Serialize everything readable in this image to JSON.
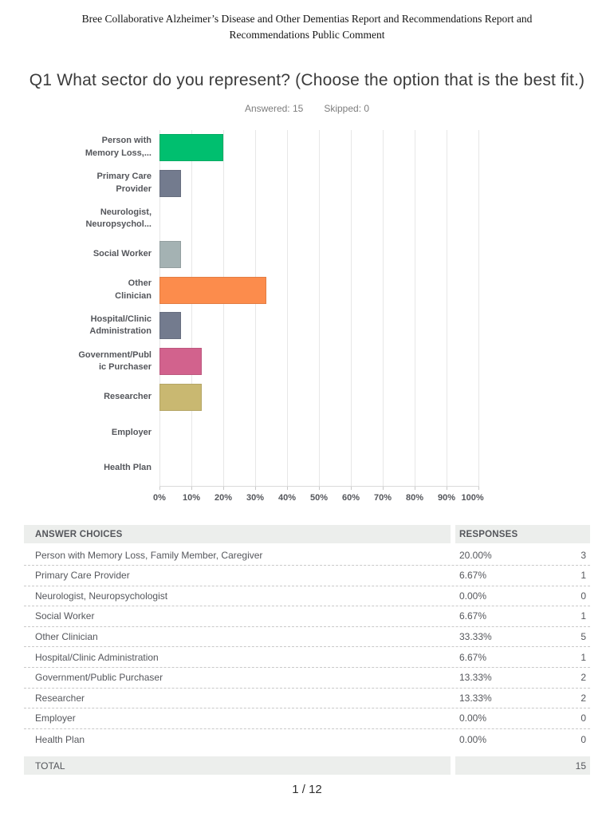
{
  "header": {
    "title": "Bree Collaborative Alzheimer’s Disease and Other Dementias Report and Recommendations Report and Recommendations Public Comment"
  },
  "question": {
    "title": "Q1 What sector do you represent? (Choose the option that is the best fit.)",
    "answered": "Answered: 15",
    "skipped": "Skipped: 0"
  },
  "chart_data": {
    "type": "bar",
    "orientation": "horizontal",
    "categories": [
      "Person with Memory Loss, Family Member, Caregiver",
      "Primary Care Provider",
      "Neurologist, Neuropsychologist",
      "Social Worker",
      "Other Clinician",
      "Hospital/Clinic Administration",
      "Government/Public Purchaser",
      "Researcher",
      "Employer",
      "Health Plan"
    ],
    "label_lines": [
      [
        "Person with",
        "Memory Loss,..."
      ],
      [
        "Primary Care",
        "Provider"
      ],
      [
        "Neurologist,",
        "Neuropsychol..."
      ],
      [
        "Social Worker"
      ],
      [
        "Other",
        "Clinician"
      ],
      [
        "Hospital/Clinic",
        "Administration"
      ],
      [
        "Government/Publ",
        "ic Purchaser"
      ],
      [
        "Researcher"
      ],
      [
        "Employer"
      ],
      [
        "Health Plan"
      ]
    ],
    "values": [
      20,
      6.67,
      0,
      6.67,
      33.33,
      6.67,
      13.33,
      13.33,
      0,
      0
    ],
    "counts": [
      3,
      1,
      0,
      1,
      5,
      1,
      2,
      2,
      0,
      0
    ],
    "colors": [
      "#00BF6F",
      "#737B8E",
      null,
      "#A4B2B3",
      "#FC8C4C",
      "#737B8E",
      "#D2628D",
      "#C9B871",
      null,
      null
    ],
    "xticks": [
      "0%",
      "10%",
      "20%",
      "30%",
      "40%",
      "50%",
      "60%",
      "70%",
      "80%",
      "90%",
      "100%"
    ],
    "xlim": [
      0,
      100
    ],
    "grid": true,
    "legend": "none",
    "xlabel": "",
    "ylabel": ""
  },
  "table": {
    "headers": [
      "ANSWER CHOICES",
      "RESPONSES"
    ],
    "rows": [
      {
        "choice": "Person with Memory Loss, Family Member, Caregiver",
        "percent": "20.00%",
        "count": "3"
      },
      {
        "choice": "Primary Care Provider",
        "percent": "6.67%",
        "count": "1"
      },
      {
        "choice": "Neurologist, Neuropsychologist",
        "percent": "0.00%",
        "count": "0"
      },
      {
        "choice": "Social Worker",
        "percent": "6.67%",
        "count": "1"
      },
      {
        "choice": "Other Clinician",
        "percent": "33.33%",
        "count": "5"
      },
      {
        "choice": "Hospital/Clinic Administration",
        "percent": "6.67%",
        "count": "1"
      },
      {
        "choice": "Government/Public Purchaser",
        "percent": "13.33%",
        "count": "2"
      },
      {
        "choice": "Researcher",
        "percent": "13.33%",
        "count": "2"
      },
      {
        "choice": "Employer",
        "percent": "0.00%",
        "count": "0"
      },
      {
        "choice": "Health Plan",
        "percent": "0.00%",
        "count": "0"
      }
    ],
    "total_label": "TOTAL",
    "total_count": "15"
  },
  "footer": {
    "page": "1 / 12"
  }
}
